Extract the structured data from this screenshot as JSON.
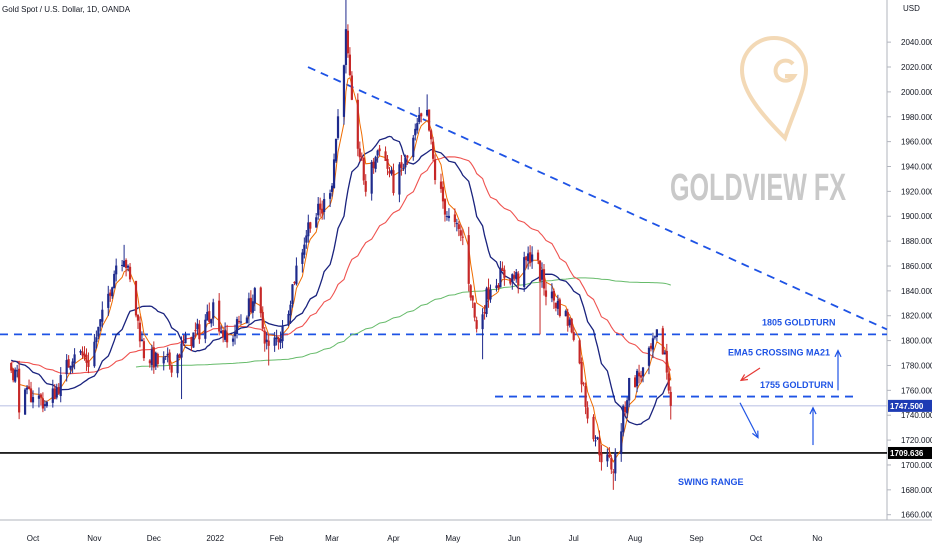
{
  "chart_data": {
    "type": "candlestick",
    "title": "Gold Spot / U.S. Dollar, 1D, OANDA",
    "currency": "USD",
    "watermark": "GOLDVIEW FX",
    "y_ticks": [
      "2040.000",
      "2020.000",
      "2000.000",
      "1980.000",
      "1960.000",
      "1940.000",
      "1920.000",
      "1900.000",
      "1880.000",
      "1860.000",
      "1840.000",
      "1820.000",
      "1800.000",
      "1780.000",
      "1760.000",
      "1740.000",
      "1720.000",
      "1700.000",
      "1680.000",
      "1660.000"
    ],
    "x_ticks": [
      "Oct",
      "Nov",
      "Dec",
      "2022",
      "Feb",
      "Mar",
      "Apr",
      "May",
      "Jun",
      "Jul",
      "Aug",
      "Sep",
      "Oct",
      "No"
    ],
    "ylim": [
      1650,
      2052
    ],
    "price_tags": {
      "current": "1747.500",
      "support": "1709.636"
    },
    "levels": [
      {
        "label": "1805 GOLDTURN",
        "value": 1805
      },
      {
        "label": "1755 GOLDTURN",
        "value": 1755
      },
      {
        "label": "",
        "value": 1709.636
      }
    ],
    "annotations": [
      "EMA5 CROSSING MA21",
      "SWING RANGE"
    ],
    "colors": {
      "up": "#1e2a8c",
      "down": "#c62828",
      "ema5": "#ef6c00",
      "ma21": "#1a237e",
      "ma50": "#ef5350",
      "ma200": "#66bb6a",
      "annotation": "#1e53e5"
    },
    "anchors": [
      [
        "2021-09-24",
        1750
      ],
      [
        "2021-10-01",
        1758
      ],
      [
        "2021-10-08",
        1748
      ],
      [
        "2021-10-15",
        1767
      ],
      [
        "2021-10-22",
        1793
      ],
      [
        "2021-10-29",
        1783
      ],
      [
        "2021-11-05",
        1818
      ],
      [
        "2021-11-12",
        1862
      ],
      [
        "2021-11-16",
        1870
      ],
      [
        "2021-11-19",
        1846
      ],
      [
        "2021-11-26",
        1790
      ],
      [
        "2021-12-03",
        1782
      ],
      [
        "2021-12-10",
        1782
      ],
      [
        "2021-12-17",
        1798
      ],
      [
        "2021-12-24",
        1808
      ],
      [
        "2021-12-31",
        1828
      ],
      [
        "2022-01-07",
        1797
      ],
      [
        "2022-01-14",
        1817
      ],
      [
        "2022-01-21",
        1835
      ],
      [
        "2022-01-28",
        1792
      ],
      [
        "2022-02-04",
        1808
      ],
      [
        "2022-02-11",
        1858
      ],
      [
        "2022-02-18",
        1898
      ],
      [
        "2022-02-24",
        1905
      ],
      [
        "2022-03-01",
        1930
      ],
      [
        "2022-03-08",
        2045
      ],
      [
        "2022-03-11",
        1986
      ],
      [
        "2022-03-18",
        1922
      ],
      [
        "2022-03-25",
        1958
      ],
      [
        "2022-04-01",
        1925
      ],
      [
        "2022-04-08",
        1946
      ],
      [
        "2022-04-14",
        1975
      ],
      [
        "2022-04-18",
        1980
      ],
      [
        "2022-04-22",
        1932
      ],
      [
        "2022-04-29",
        1897
      ],
      [
        "2022-05-06",
        1882
      ],
      [
        "2022-05-13",
        1808
      ],
      [
        "2022-05-20",
        1846
      ],
      [
        "2022-05-27",
        1853
      ],
      [
        "2022-06-03",
        1850
      ],
      [
        "2022-06-10",
        1872
      ],
      [
        "2022-06-17",
        1840
      ],
      [
        "2022-06-24",
        1827
      ],
      [
        "2022-07-01",
        1808
      ],
      [
        "2022-07-08",
        1742
      ],
      [
        "2022-07-15",
        1708
      ],
      [
        "2022-07-21",
        1698
      ],
      [
        "2022-07-29",
        1765
      ],
      [
        "2022-08-05",
        1775
      ],
      [
        "2022-08-12",
        1802
      ],
      [
        "2022-08-16",
        1790
      ],
      [
        "2022-08-19",
        1747.5
      ]
    ]
  }
}
